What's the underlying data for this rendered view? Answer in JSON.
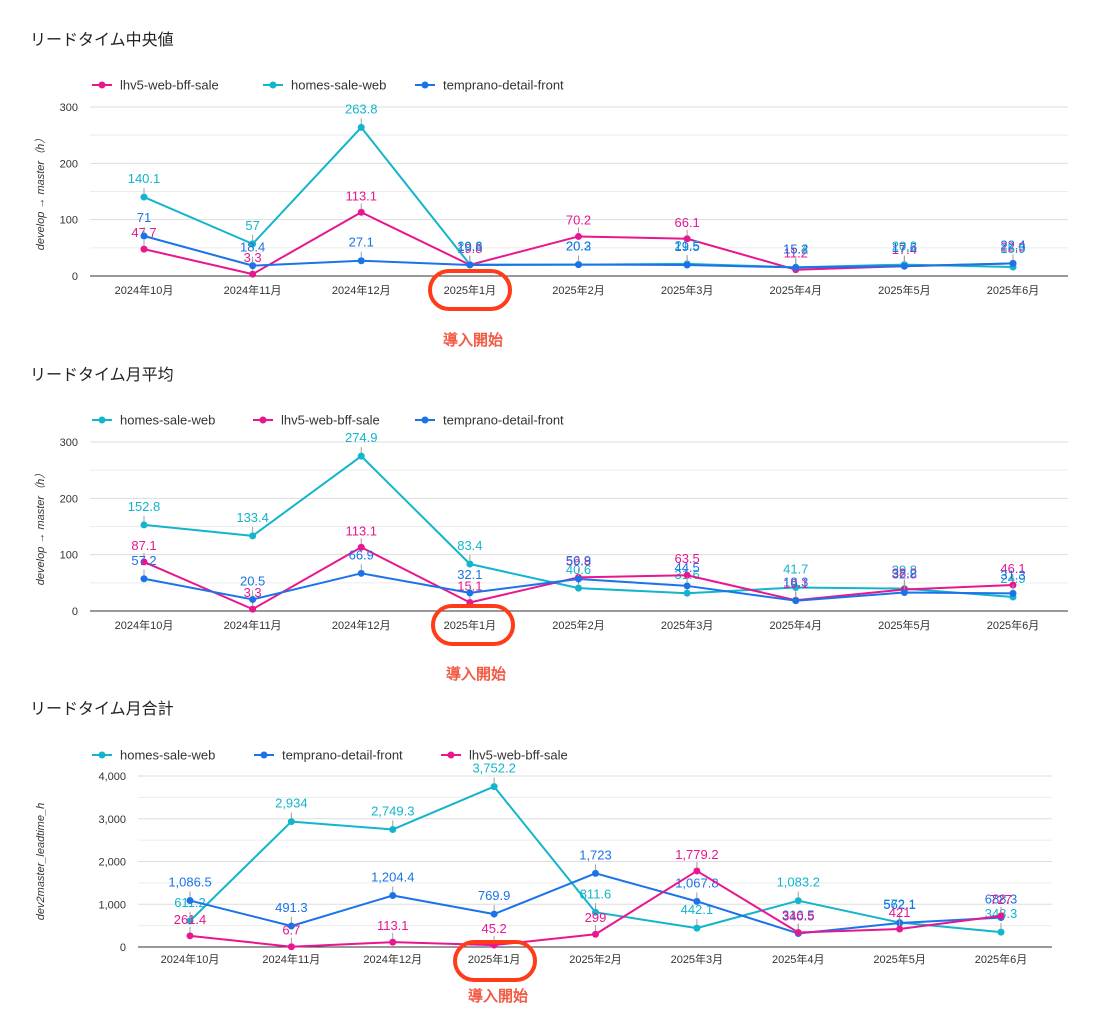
{
  "annotation": {
    "label": "導入開始",
    "color": "#ff3b1a",
    "target_category": "2025年1月"
  },
  "colors": {
    "lhv5-web-bff-sale": "#e8168f",
    "homes-sale-web": "#12b5cb",
    "temprano-detail-front": "#1a73e8",
    "gridline": "#dddddd",
    "axis": "#333333"
  },
  "chart_data": [
    {
      "type": "line",
      "title": "リードタイム中央値",
      "ylabel": "develop → master（h）",
      "xlabel": "",
      "legend_position": "top-left",
      "grid": true,
      "ylim": [
        0,
        300
      ],
      "yticks": [
        "0",
        "100",
        "200",
        "300"
      ],
      "categories": [
        "2024年10月",
        "2024年11月",
        "2024年12月",
        "2025年1月",
        "2025年2月",
        "2025年3月",
        "2025年4月",
        "2025年5月",
        "2025年6月"
      ],
      "series": [
        {
          "name": "lhv5-web-bff-sale",
          "values": [
            47.7,
            3.3,
            113.1,
            19.8,
            70.2,
            66.1,
            11.2,
            17.4,
            22.3
          ],
          "labels": [
            "47.7",
            "3.3",
            "113.1",
            "19.8",
            "70.2",
            "66.1",
            "11.2",
            "17.4",
            "22.3"
          ]
        },
        {
          "name": "homes-sale-web",
          "values": [
            140.1,
            57,
            263.8,
            20.3,
            20.2,
            21.5,
            15.4,
            20.3,
            15.9
          ],
          "labels": [
            "140.1",
            "57",
            "263.8",
            "20.3",
            "20.2",
            "21.5",
            "15.4",
            "20.3",
            "15.9"
          ]
        },
        {
          "name": "temprano-detail-front",
          "values": [
            71,
            18.4,
            27.1,
            19.6,
            20.3,
            19.5,
            15.2,
            17.6,
            22.4
          ],
          "labels": [
            "71",
            "18.4",
            "27.1",
            "19.6",
            "20.3",
            "19.5",
            "15.2",
            "17.6",
            "22.4"
          ]
        }
      ]
    },
    {
      "type": "line",
      "title": "リードタイム月平均",
      "ylabel": "develop → master（h）",
      "xlabel": "",
      "legend_position": "top-left",
      "grid": true,
      "ylim": [
        0,
        300
      ],
      "yticks": [
        "0",
        "100",
        "200",
        "300"
      ],
      "categories": [
        "2024年10月",
        "2024年11月",
        "2024年12月",
        "2025年1月",
        "2025年2月",
        "2025年3月",
        "2025年4月",
        "2025年5月",
        "2025年6月"
      ],
      "series": [
        {
          "name": "homes-sale-web",
          "values": [
            152.8,
            133.4,
            274.9,
            83.4,
            40.6,
            31.6,
            41.7,
            39.8,
            24.9
          ],
          "labels": [
            "152.8",
            "133.4",
            "274.9",
            "83.4",
            "40.6",
            "31.6",
            "41.7",
            "39.8",
            "24.9"
          ]
        },
        {
          "name": "lhv5-web-bff-sale",
          "values": [
            87.1,
            3.3,
            113.1,
            15.1,
            59.8,
            63.5,
            19.1,
            38.2,
            46.1
          ],
          "labels": [
            "87.1",
            "3.3",
            "113.1",
            "15.1",
            "59.8",
            "63.5",
            "19.1",
            "38.2",
            "46.1"
          ]
        },
        {
          "name": "temprano-detail-front",
          "values": [
            57.2,
            20.5,
            66.9,
            32.1,
            56.9,
            44.5,
            18.3,
            32.8,
            31.3
          ],
          "labels": [
            "57.2",
            "20.5",
            "66.9",
            "32.1",
            "56.9",
            "44.5",
            "18.3",
            "32.8",
            "31.3"
          ]
        }
      ]
    },
    {
      "type": "line",
      "title": "リードタイム月合計",
      "ylabel": "dev2master_leadtime_h",
      "xlabel": "",
      "legend_position": "top-left",
      "grid": true,
      "ylim": [
        0,
        4000
      ],
      "yticks": [
        "0",
        "1,000",
        "2,000",
        "3,000",
        "4,000"
      ],
      "categories": [
        "2024年10月",
        "2024年11月",
        "2024年12月",
        "2025年1月",
        "2025年2月",
        "2025年3月",
        "2025年4月",
        "2025年5月",
        "2025年6月"
      ],
      "series": [
        {
          "name": "homes-sale-web",
          "values": [
            611.2,
            2934,
            2749.3,
            3752.2,
            811.6,
            442.1,
            1083.2,
            572.1,
            348.3
          ],
          "labels": [
            "611.2",
            "2,934",
            "2,749.3",
            "3,752.2",
            "811.6",
            "442.1",
            "1,083.2",
            "572.1",
            "348.3"
          ]
        },
        {
          "name": "temprano-detail-front",
          "values": [
            1086.5,
            491.3,
            1204.4,
            769.9,
            1723,
            1067.8,
            316.5,
            562.1,
            688.3
          ],
          "labels": [
            "1,086.5",
            "491.3",
            "1,204.4",
            "769.9",
            "1,723",
            "1,067.8",
            "316.5",
            "562.1",
            "688.3"
          ]
        },
        {
          "name": "lhv5-web-bff-sale",
          "values": [
            261.4,
            6.7,
            113.1,
            45.2,
            299,
            1779.2,
            340.5,
            421,
            727
          ],
          "labels": [
            "261.4",
            "6.7",
            "113.1",
            "45.2",
            "299",
            "1,779.2",
            "340.5",
            "421",
            "727"
          ]
        }
      ]
    }
  ]
}
